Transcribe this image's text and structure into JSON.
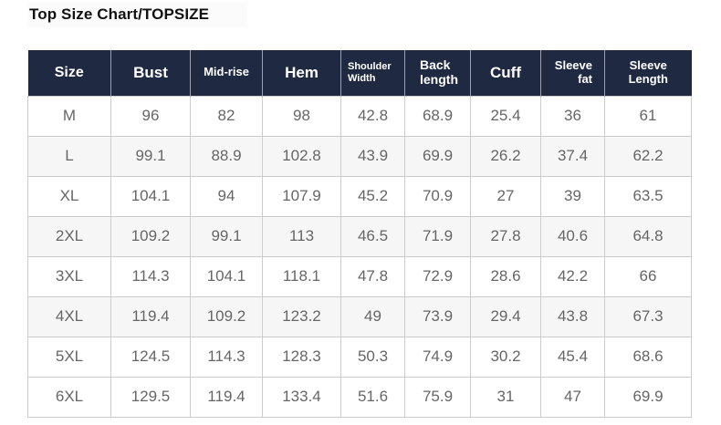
{
  "title": "Top Size Chart/TOPSIZE",
  "table": {
    "columns": [
      {
        "label": "Size"
      },
      {
        "label": "Bust"
      },
      {
        "label": "Mid-rise"
      },
      {
        "label": "Hem"
      },
      {
        "label": "Shoulder\nWidth"
      },
      {
        "label": "Back\nlength"
      },
      {
        "label": "Cuff"
      },
      {
        "label": "Sleeve\nfat"
      },
      {
        "label": "Sleeve\nLength"
      }
    ],
    "rows": [
      {
        "size": "M",
        "values": [
          "96",
          "82",
          "98",
          "42.8",
          "68.9",
          "25.4",
          "36",
          "61"
        ]
      },
      {
        "size": "L",
        "values": [
          "99.1",
          "88.9",
          "102.8",
          "43.9",
          "69.9",
          "26.2",
          "37.4",
          "62.2"
        ]
      },
      {
        "size": "XL",
        "values": [
          "104.1",
          "94",
          "107.9",
          "45.2",
          "70.9",
          "27",
          "39",
          "63.5"
        ]
      },
      {
        "size": "2XL",
        "values": [
          "109.2",
          "99.1",
          "113",
          "46.5",
          "71.9",
          "27.8",
          "40.6",
          "64.8"
        ]
      },
      {
        "size": "3XL",
        "values": [
          "114.3",
          "104.1",
          "118.1",
          "47.8",
          "72.9",
          "28.6",
          "42.2",
          "66"
        ]
      },
      {
        "size": "4XL",
        "values": [
          "119.4",
          "109.2",
          "123.2",
          "49",
          "73.9",
          "29.4",
          "43.8",
          "67.3"
        ]
      },
      {
        "size": "5XL",
        "values": [
          "124.5",
          "114.3",
          "128.3",
          "50.3",
          "74.9",
          "30.2",
          "45.4",
          "68.6"
        ]
      },
      {
        "size": "6XL",
        "values": [
          "129.5",
          "119.4",
          "133.4",
          "51.6",
          "75.9",
          "31",
          "47",
          "69.9"
        ]
      }
    ]
  },
  "colors": {
    "header_bg": "#1f2a42",
    "header_text": "#ffffff",
    "cell_text": "#666666",
    "border": "#cccccc",
    "alt_row_bg": "#f6f6f6",
    "title_text": "#121212"
  }
}
